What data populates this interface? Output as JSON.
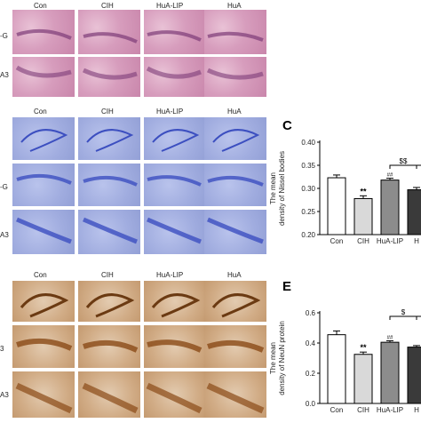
{
  "column_headers": [
    "Con",
    "CIH",
    "HuA-LIP",
    "HuA"
  ],
  "row_labels": {
    "he_dg": "-G",
    "he_ca3": "A3",
    "nis_dg": "-G",
    "nis_ca3": "A3",
    "ihc_dg": "3",
    "ihc_ca3": "A3"
  },
  "panel_letters": {
    "c": "C",
    "e": "E"
  },
  "colors": {
    "he_stain": "#d79dbd",
    "nissl_stain": "#a0acdf",
    "ihc_stain": "#d1ac86",
    "bar_con": "#ffffff",
    "bar_cih": "#d9d9d9",
    "bar_hualip": "#8c8c8c",
    "bar_hua": "#3a3a3a"
  },
  "chart_data": [
    {
      "type": "bar",
      "panel": "C",
      "categories": [
        "Con",
        "CIH",
        "HuA-LIP",
        "H"
      ],
      "values": [
        0.323,
        0.278,
        0.318,
        0.297
      ],
      "errors": [
        0.006,
        0.006,
        0.004,
        0.005
      ],
      "ylabel_line1": "The mean",
      "ylabel_line2": "density of Nissel bodies",
      "ylim": [
        0.2,
        0.4
      ],
      "yticks": [
        "0.20",
        "0.25",
        "0.30",
        "0.35",
        "0.40"
      ],
      "annotations": [
        "**",
        "##",
        "$$"
      ]
    },
    {
      "type": "bar",
      "panel": "E",
      "categories": [
        "Con",
        "CIH",
        "HuA-LIP",
        "H"
      ],
      "values": [
        0.455,
        0.325,
        0.405,
        0.373
      ],
      "errors": [
        0.025,
        0.015,
        0.01,
        0.01
      ],
      "ylabel_line1": "The mean",
      "ylabel_line2": "density of NeuN protein",
      "ylim": [
        0.0,
        0.6
      ],
      "yticks": [
        "0.0",
        "0.2",
        "0.4",
        "0.6"
      ],
      "annotations": [
        "**",
        "##",
        "$"
      ]
    }
  ]
}
